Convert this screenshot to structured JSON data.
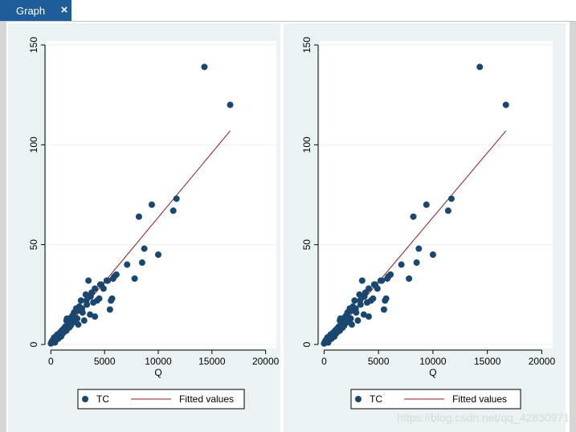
{
  "tab": {
    "title": "Graph",
    "close_icon": "×"
  },
  "colors": {
    "tab_bg": "#1e5c9a",
    "marker": "#1a476f",
    "fit_line": "#8b1c1c",
    "plot_bg": "#ffffff",
    "outer_bg": "#eaf2f3",
    "grid": "#e8eff0"
  },
  "watermark": "https://blog.csdn.net/qq_42830971",
  "chart_data": [
    {
      "type": "scatter",
      "title": "",
      "xlabel": "Q",
      "ylabel": "",
      "xlim": [
        -400,
        21000
      ],
      "ylim": [
        -2,
        152
      ],
      "xticks": [
        0,
        5000,
        10000,
        15000,
        20000
      ],
      "xtick_labels": [
        "0",
        "5000",
        "10000",
        "15000",
        "20000"
      ],
      "yticks": [
        0,
        50,
        100,
        150
      ],
      "ytick_labels": [
        "0",
        "50",
        "100",
        "150"
      ],
      "grid": true,
      "legend": [
        "TC",
        "Fitted values"
      ],
      "series": [
        {
          "name": "TC",
          "kind": "scatter",
          "x": [
            0,
            80,
            150,
            220,
            300,
            380,
            450,
            520,
            600,
            700,
            780,
            850,
            950,
            1020,
            1100,
            1200,
            1280,
            1350,
            1450,
            1500,
            1600,
            1700,
            1780,
            1850,
            1950,
            2050,
            2150,
            2250,
            2350,
            2450,
            2550,
            2650,
            2800,
            2950,
            3100,
            3250,
            3350,
            3500,
            3650,
            3800,
            3950,
            4100,
            4300,
            4500,
            4700,
            4900,
            5200,
            5500,
            5800,
            6100,
            5600,
            5700,
            1450,
            1800,
            2100,
            2500,
            2900,
            3300,
            3700,
            4100,
            4600,
            5300,
            5900,
            7100,
            7800,
            8200,
            8500,
            8700,
            9400,
            10000,
            11400,
            11700,
            14300,
            16700
          ],
          "y": [
            0.5,
            1.5,
            2,
            2.5,
            3.5,
            1,
            4,
            2.5,
            5,
            3,
            4.5,
            6,
            4,
            7,
            5.5,
            8,
            6.5,
            9,
            7,
            13,
            10,
            8.5,
            12,
            9.5,
            14,
            11,
            16,
            12.5,
            18,
            13,
            10,
            19,
            22,
            16,
            12,
            25,
            20,
            32,
            15,
            26,
            21,
            14,
            22,
            23,
            30,
            28,
            32,
            17.5,
            33,
            35,
            22,
            23,
            12,
            11,
            15,
            17,
            18,
            22,
            24,
            28,
            30,
            32,
            34,
            40,
            33,
            64,
            41,
            48,
            70,
            45,
            67,
            73,
            139,
            120
          ]
        },
        {
          "name": "Fitted values",
          "kind": "line",
          "x": [
            0,
            16700
          ],
          "y": [
            -1,
            107
          ]
        }
      ]
    },
    {
      "type": "scatter",
      "title": "",
      "xlabel": "Q",
      "ylabel": "",
      "xlim": [
        -400,
        21000
      ],
      "ylim": [
        -2,
        152
      ],
      "xticks": [
        0,
        5000,
        10000,
        15000,
        20000
      ],
      "xtick_labels": [
        "0",
        "5000",
        "10000",
        "15000",
        "20000"
      ],
      "yticks": [
        0,
        50,
        100,
        150
      ],
      "ytick_labels": [
        "0",
        "50",
        "100",
        "150"
      ],
      "grid": true,
      "legend": [
        "TC",
        "Fitted values"
      ],
      "series": [
        {
          "name": "TC",
          "kind": "scatter",
          "x": [
            0,
            80,
            150,
            220,
            300,
            380,
            450,
            520,
            600,
            700,
            780,
            850,
            950,
            1020,
            1100,
            1200,
            1280,
            1350,
            1450,
            1500,
            1600,
            1700,
            1780,
            1850,
            1950,
            2050,
            2150,
            2250,
            2350,
            2450,
            2550,
            2650,
            2800,
            2950,
            3100,
            3250,
            3350,
            3500,
            3650,
            3800,
            3950,
            4100,
            4300,
            4500,
            4700,
            4900,
            5200,
            5500,
            5800,
            6100,
            5600,
            5700,
            1450,
            1800,
            2100,
            2500,
            2900,
            3300,
            3700,
            4100,
            4600,
            5300,
            5900,
            7100,
            7800,
            8200,
            8500,
            8700,
            9400,
            10000,
            11400,
            11700,
            14300,
            16700
          ],
          "y": [
            0.5,
            1.5,
            2,
            2.5,
            3.5,
            1,
            4,
            2.5,
            5,
            3,
            4.5,
            6,
            4,
            7,
            5.5,
            8,
            6.5,
            9,
            7,
            13,
            10,
            8.5,
            12,
            9.5,
            14,
            11,
            16,
            12.5,
            18,
            13,
            10,
            19,
            22,
            16,
            12,
            25,
            20,
            32,
            15,
            26,
            21,
            14,
            22,
            23,
            30,
            28,
            32,
            17.5,
            33,
            35,
            22,
            23,
            12,
            11,
            15,
            17,
            18,
            22,
            24,
            28,
            30,
            32,
            34,
            40,
            33,
            64,
            41,
            48,
            70,
            45,
            67,
            73,
            139,
            120
          ]
        },
        {
          "name": "Fitted values",
          "kind": "line",
          "x": [
            0,
            16700
          ],
          "y": [
            -1,
            107
          ]
        }
      ]
    }
  ]
}
